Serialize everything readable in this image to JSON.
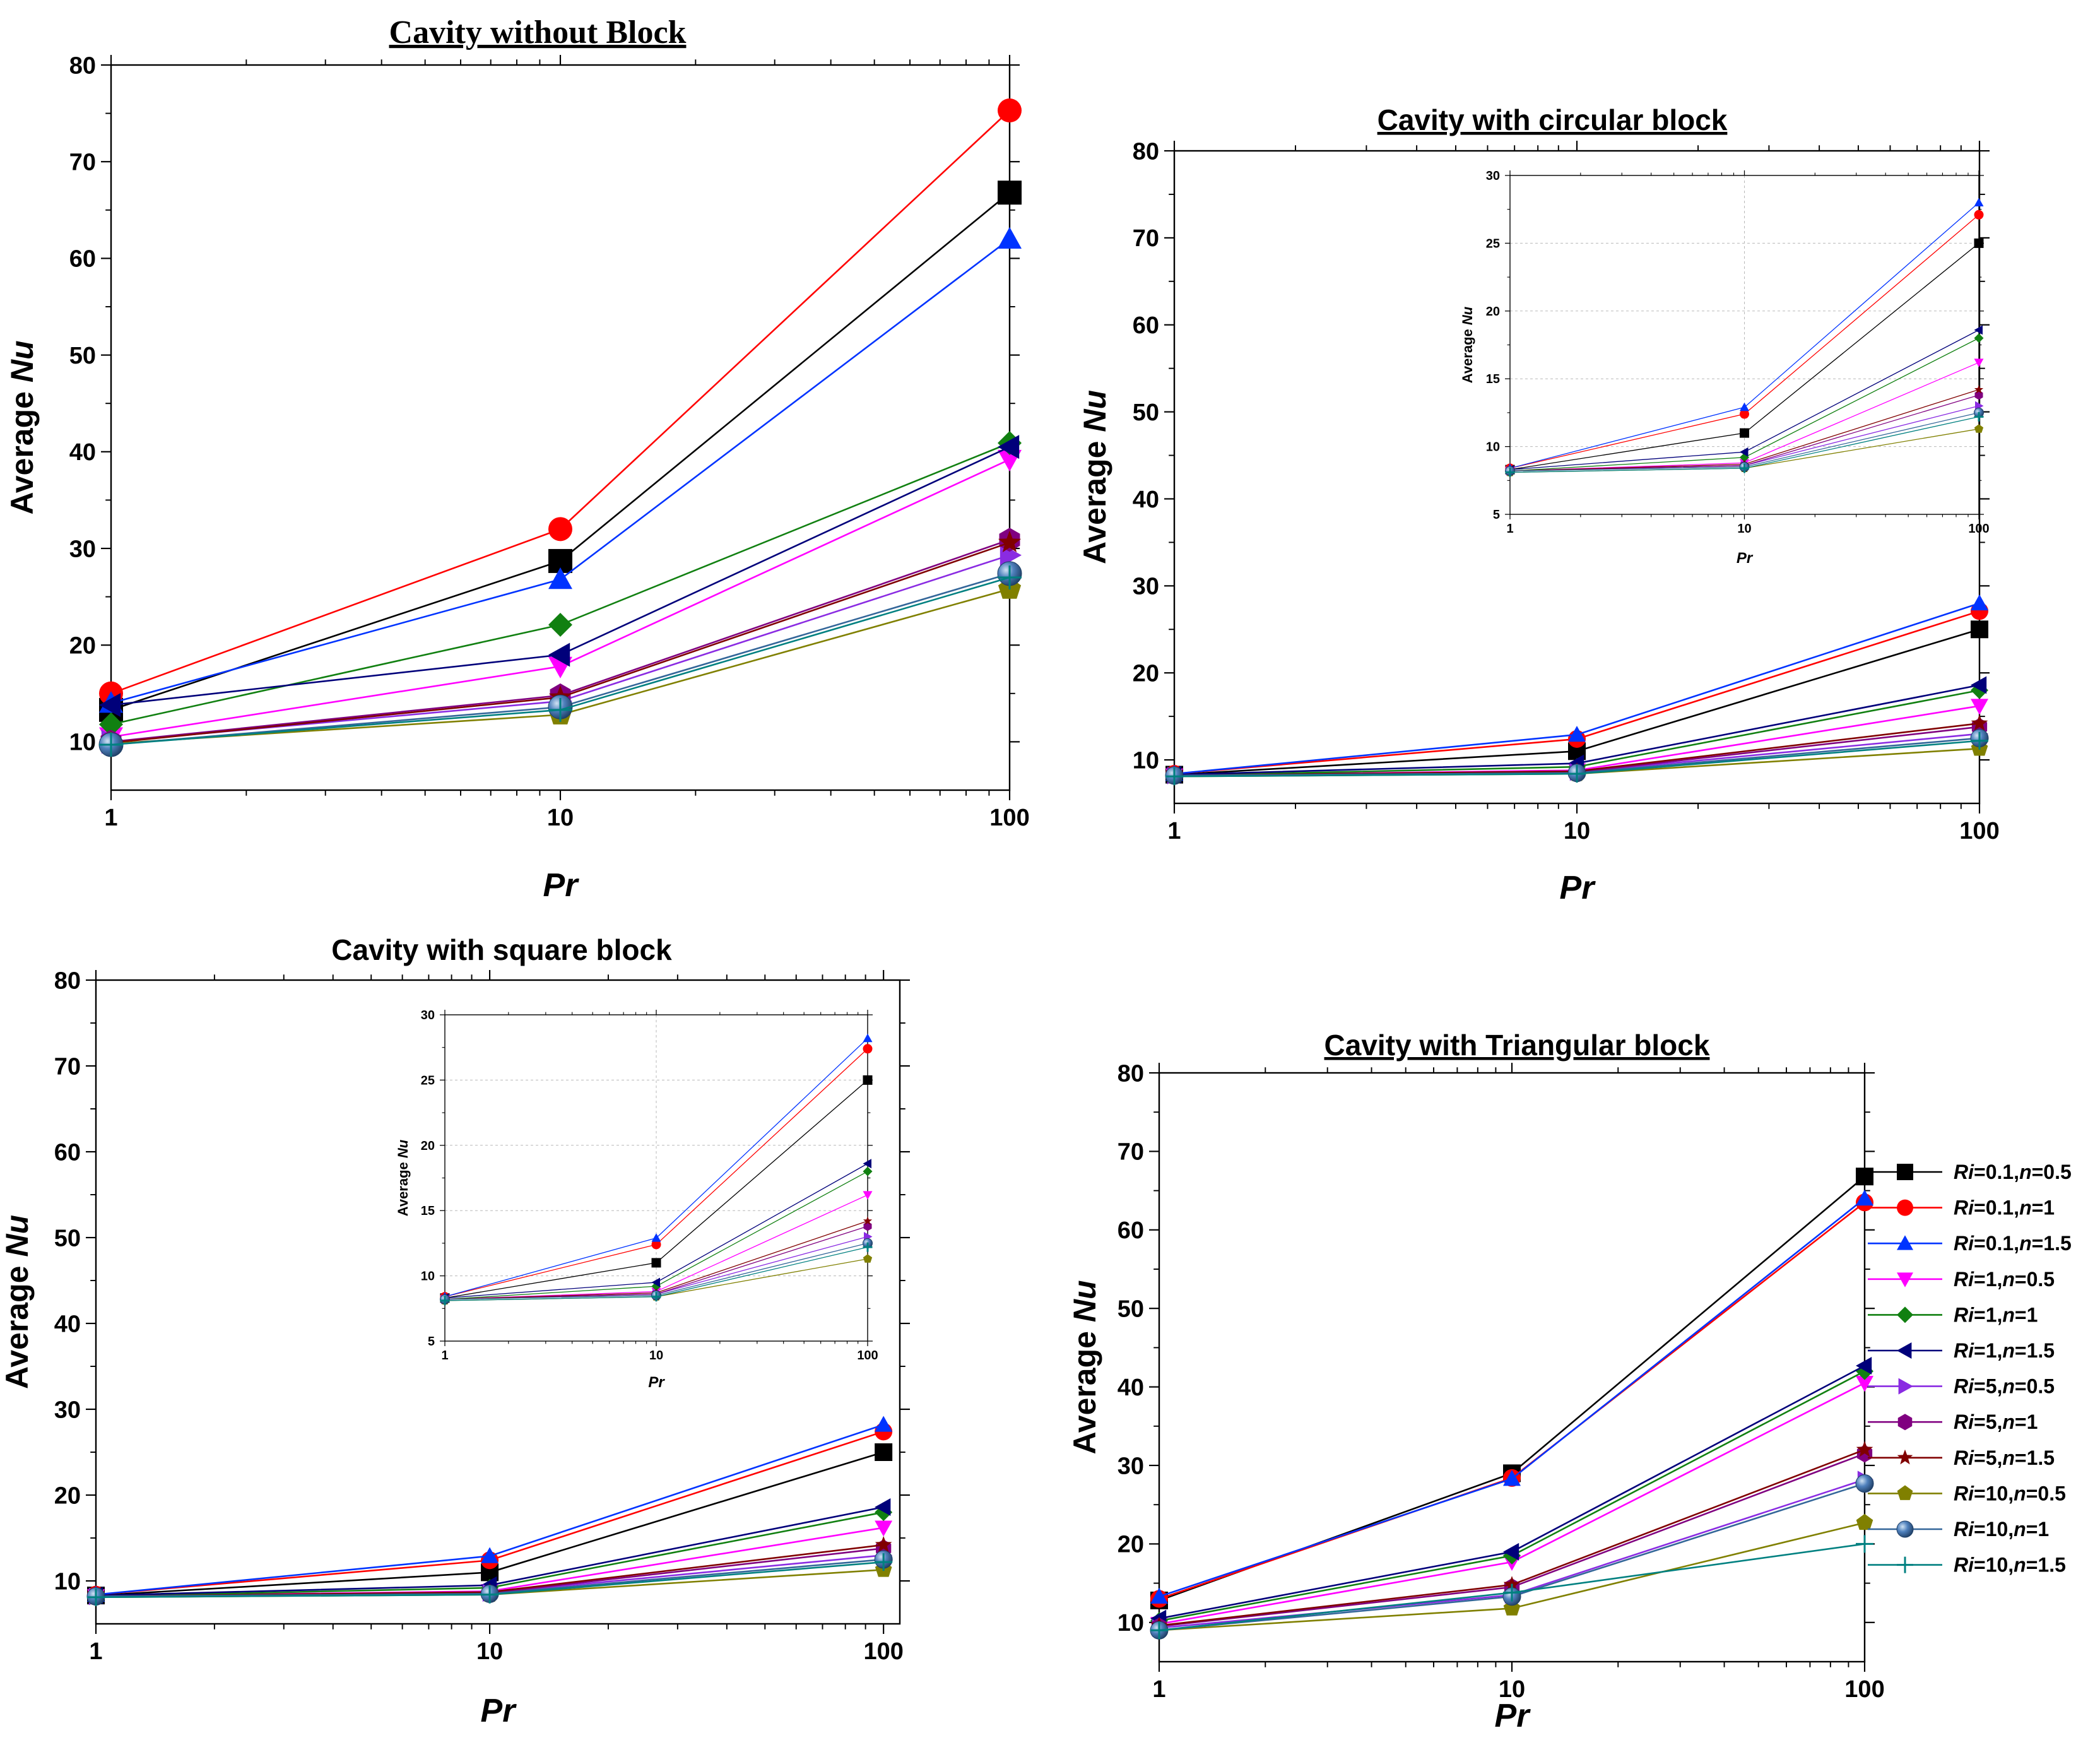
{
  "colors": {
    "Ri=0.1,n=0.5": "#000000",
    "Ri=0.1,n=1": "#ff0000",
    "Ri=0.1,n=1.5": "#0033ff",
    "Ri=1,n=0.5": "#ff00ff",
    "Ri=1,n=1": "#118011",
    "Ri=1,n=1.5": "#00007a",
    "Ri=5,n=0.5": "#8a2be2",
    "Ri=5,n=1": "#800080",
    "Ri=5,n=1.5": "#800000",
    "Ri=10,n=0.5": "#808000",
    "Ri=10,n=1": "#336699",
    "Ri=10,n=1.5": "#008080"
  },
  "legend": {
    "entries": [
      {
        "key": "Ri=0.1,n=0.5",
        "ri": "Ri",
        "riv": "=0.1,",
        "n": "n",
        "nv": "=0.5",
        "marker": "square"
      },
      {
        "key": "Ri=0.1,n=1",
        "ri": "Ri",
        "riv": "=0.1,",
        "n": "n",
        "nv": "=1",
        "marker": "circle"
      },
      {
        "key": "Ri=0.1,n=1.5",
        "ri": "Ri",
        "riv": "=0.1,",
        "n": "n",
        "nv": "=1.5",
        "marker": "triangle-up"
      },
      {
        "key": "Ri=1,n=0.5",
        "ri": "Ri",
        "riv": "=1,",
        "n": "n",
        "nv": "=0.5",
        "marker": "triangle-down"
      },
      {
        "key": "Ri=1,n=1",
        "ri": "Ri",
        "riv": "=1,",
        "n": "n",
        "nv": "=1",
        "marker": "diamond"
      },
      {
        "key": "Ri=1,n=1.5",
        "ri": "Ri",
        "riv": "=1,",
        "n": "n",
        "nv": "=1.5",
        "marker": "triangle-left"
      },
      {
        "key": "Ri=5,n=0.5",
        "ri": "Ri",
        "riv": "=5,",
        "n": "n",
        "nv": "=0.5",
        "marker": "triangle-right"
      },
      {
        "key": "Ri=5,n=1",
        "ri": "Ri",
        "riv": "=5,",
        "n": "n",
        "nv": "=1",
        "marker": "hexagon"
      },
      {
        "key": "Ri=5,n=1.5",
        "ri": "Ri",
        "riv": "=5,",
        "n": "n",
        "nv": "=1.5",
        "marker": "star"
      },
      {
        "key": "Ri=10,n=0.5",
        "ri": "Ri",
        "riv": "=10,",
        "n": "n",
        "nv": "=0.5",
        "marker": "pentagon"
      },
      {
        "key": "Ri=10,n=1",
        "ri": "Ri",
        "riv": "=10,",
        "n": "n",
        "nv": "=1",
        "marker": "sphere"
      },
      {
        "key": "Ri=10,n=1.5",
        "ri": "Ri",
        "riv": "=10,",
        "n": "n",
        "nv": "=1.5",
        "marker": "plus"
      }
    ]
  },
  "chart_data": [
    {
      "id": "no-block",
      "type": "line",
      "title": "Cavity without Block",
      "xlabel": "Pr",
      "ylabel_prefix": "Average ",
      "ylabel_italic": "Nu",
      "xscale": "log",
      "x": [
        1,
        10,
        100
      ],
      "xticks": [
        "1",
        "10",
        "100"
      ],
      "xlim": [
        1,
        100
      ],
      "ylim": [
        5,
        80
      ],
      "yticks": [
        "10",
        "20",
        "30",
        "40",
        "50",
        "60",
        "70",
        "80"
      ],
      "series": [
        {
          "name": "Ri=0.1,n=0.5",
          "values": [
            13.3,
            28.7,
            66.8
          ]
        },
        {
          "name": "Ri=0.1,n=1",
          "values": [
            15.0,
            32.0,
            75.3
          ]
        },
        {
          "name": "Ri=0.1,n=1.5",
          "values": [
            14.0,
            26.8,
            62.0
          ]
        },
        {
          "name": "Ri=1,n=0.5",
          "values": [
            10.5,
            17.8,
            39.2
          ]
        },
        {
          "name": "Ri=1,n=1",
          "values": [
            11.8,
            22.1,
            40.9
          ]
        },
        {
          "name": "Ri=1,n=1.5",
          "values": [
            13.8,
            19.0,
            40.5
          ]
        },
        {
          "name": "Ri=5,n=0.5",
          "values": [
            10.0,
            14.2,
            29.3
          ]
        },
        {
          "name": "Ri=5,n=1",
          "values": [
            10.0,
            14.8,
            30.9
          ]
        },
        {
          "name": "Ri=5,n=1.5",
          "values": [
            9.9,
            14.6,
            30.6
          ]
        },
        {
          "name": "Ri=10,n=0.5",
          "values": [
            9.8,
            12.8,
            25.8
          ]
        },
        {
          "name": "Ri=10,n=1",
          "values": [
            9.7,
            13.6,
            27.4
          ]
        },
        {
          "name": "Ri=10,n=1.5",
          "values": [
            9.7,
            13.3,
            27.0
          ]
        }
      ]
    },
    {
      "id": "circular",
      "type": "line",
      "title": "Cavity with circular block",
      "xlabel": "Pr",
      "ylabel_prefix": "Average ",
      "ylabel_italic": "Nu",
      "xscale": "log",
      "x": [
        1,
        10,
        100
      ],
      "xticks": [
        "1",
        "10",
        "100"
      ],
      "xlim": [
        1,
        100
      ],
      "ylim": [
        5,
        80
      ],
      "yticks": [
        "10",
        "20",
        "30",
        "40",
        "50",
        "60",
        "70",
        "80"
      ],
      "series": [
        {
          "name": "Ri=0.1,n=0.5",
          "values": [
            8.3,
            11.0,
            25.0
          ]
        },
        {
          "name": "Ri=0.1,n=1",
          "values": [
            8.4,
            12.4,
            27.1
          ]
        },
        {
          "name": "Ri=0.1,n=1.5",
          "values": [
            8.4,
            12.9,
            28.0
          ]
        },
        {
          "name": "Ri=1,n=0.5",
          "values": [
            8.2,
            8.8,
            16.2
          ]
        },
        {
          "name": "Ri=1,n=1",
          "values": [
            8.2,
            9.2,
            18.0
          ]
        },
        {
          "name": "Ri=1,n=1.5",
          "values": [
            8.3,
            9.6,
            18.6
          ]
        },
        {
          "name": "Ri=5,n=0.5",
          "values": [
            8.2,
            8.6,
            13.0
          ]
        },
        {
          "name": "Ri=5,n=1",
          "values": [
            8.2,
            8.6,
            13.8
          ]
        },
        {
          "name": "Ri=5,n=1.5",
          "values": [
            8.2,
            8.7,
            14.2
          ]
        },
        {
          "name": "Ri=10,n=0.5",
          "values": [
            8.1,
            8.4,
            11.3
          ]
        },
        {
          "name": "Ri=10,n=1",
          "values": [
            8.2,
            8.5,
            12.5
          ]
        },
        {
          "name": "Ri=10,n=1.5",
          "values": [
            8.1,
            8.4,
            12.2
          ]
        }
      ],
      "inset": {
        "xlabel": "Pr",
        "ylabel_prefix": "Average ",
        "ylabel_italic": "Nu",
        "xticks": [
          "1",
          "10",
          "100"
        ],
        "ylim": [
          5,
          30
        ],
        "yticks": [
          "5",
          "10",
          "15",
          "20",
          "25",
          "30"
        ]
      }
    },
    {
      "id": "square",
      "type": "line",
      "title": "Cavity with square block",
      "xlabel": "Pr",
      "ylabel_prefix": "Average ",
      "ylabel_italic": "Nu",
      "xscale": "log",
      "x": [
        1,
        10,
        100
      ],
      "xticks": [
        "1",
        "10",
        "100"
      ],
      "xlim": [
        1,
        110
      ],
      "ylim": [
        5,
        80
      ],
      "yticks": [
        "10",
        "20",
        "30",
        "40",
        "50",
        "60",
        "70",
        "80"
      ],
      "series": [
        {
          "name": "Ri=0.1,n=0.5",
          "values": [
            8.3,
            11.0,
            25.0
          ]
        },
        {
          "name": "Ri=0.1,n=1",
          "values": [
            8.4,
            12.4,
            27.4
          ]
        },
        {
          "name": "Ri=0.1,n=1.5",
          "values": [
            8.4,
            12.9,
            28.2
          ]
        },
        {
          "name": "Ri=1,n=0.5",
          "values": [
            8.2,
            8.8,
            16.2
          ]
        },
        {
          "name": "Ri=1,n=1",
          "values": [
            8.2,
            9.2,
            18.0
          ]
        },
        {
          "name": "Ri=1,n=1.5",
          "values": [
            8.3,
            9.5,
            18.6
          ]
        },
        {
          "name": "Ri=5,n=0.5",
          "values": [
            8.2,
            8.6,
            13.0
          ]
        },
        {
          "name": "Ri=5,n=1",
          "values": [
            8.2,
            8.6,
            13.8
          ]
        },
        {
          "name": "Ri=5,n=1.5",
          "values": [
            8.2,
            8.7,
            14.2
          ]
        },
        {
          "name": "Ri=10,n=0.5",
          "values": [
            8.1,
            8.4,
            11.3
          ]
        },
        {
          "name": "Ri=10,n=1",
          "values": [
            8.2,
            8.5,
            12.5
          ]
        },
        {
          "name": "Ri=10,n=1.5",
          "values": [
            8.1,
            8.4,
            12.2
          ]
        }
      ],
      "inset": {
        "xlabel": "Pr",
        "ylabel_prefix": "Average ",
        "ylabel_italic": "Nu",
        "xticks": [
          "1",
          "10",
          "100"
        ],
        "ylim": [
          5,
          30
        ],
        "yticks": [
          "5",
          "10",
          "15",
          "20",
          "25",
          "30"
        ]
      }
    },
    {
      "id": "triangular",
      "type": "line",
      "title": "Cavity with Triangular block",
      "xlabel": "Pr",
      "ylabel_prefix": "Average ",
      "ylabel_italic": "Nu",
      "xscale": "log",
      "x": [
        1,
        10,
        100
      ],
      "xticks": [
        "1",
        "10",
        "100"
      ],
      "xlim": [
        1,
        100
      ],
      "ylim": [
        5,
        80
      ],
      "yticks": [
        "10",
        "20",
        "30",
        "40",
        "50",
        "60",
        "70",
        "80"
      ],
      "series": [
        {
          "name": "Ri=0.1,n=0.5",
          "values": [
            12.8,
            29.0,
            66.8
          ]
        },
        {
          "name": "Ri=0.1,n=1",
          "values": [
            13.0,
            28.4,
            63.5
          ]
        },
        {
          "name": "Ri=0.1,n=1.5",
          "values": [
            13.3,
            28.3,
            64.0
          ]
        },
        {
          "name": "Ri=1,n=0.5",
          "values": [
            9.8,
            17.7,
            40.5
          ]
        },
        {
          "name": "Ri=1,n=1",
          "values": [
            10.2,
            18.5,
            42.0
          ]
        },
        {
          "name": "Ri=1,n=1.5",
          "values": [
            10.5,
            19.0,
            42.7
          ]
        },
        {
          "name": "Ri=5,n=0.5",
          "values": [
            9.3,
            13.5,
            28.2
          ]
        },
        {
          "name": "Ri=5,n=1",
          "values": [
            9.5,
            14.5,
            31.5
          ]
        },
        {
          "name": "Ri=5,n=1.5",
          "values": [
            9.6,
            14.8,
            32.0
          ]
        },
        {
          "name": "Ri=10,n=0.5",
          "values": [
            9.0,
            11.8,
            22.7
          ]
        },
        {
          "name": "Ri=10,n=1",
          "values": [
            9.0,
            13.3,
            27.7
          ]
        },
        {
          "name": "Ri=10,n=1.5",
          "values": [
            9.0,
            13.8,
            20.0
          ]
        }
      ]
    }
  ]
}
